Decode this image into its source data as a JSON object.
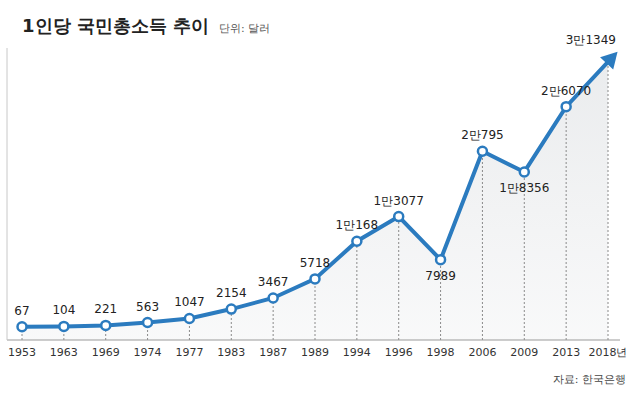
{
  "chart_data": {
    "type": "line",
    "title": "1인당 국민총소득 추이",
    "subtitle": "단위: 달러",
    "annotations": [
      "자료: 한국은행"
    ],
    "categories": [
      "1953",
      "1963",
      "1969",
      "1974",
      "1977",
      "1983",
      "1987",
      "1989",
      "1994",
      "1996",
      "1998",
      "2006",
      "2009",
      "2013",
      "2018년"
    ],
    "values": [
      67,
      104,
      221,
      563,
      1047,
      2154,
      3467,
      5718,
      10168,
      13077,
      7989,
      20795,
      18356,
      26070,
      31349
    ],
    "value_labels": [
      "67",
      "104",
      "221",
      "563",
      "1047",
      "2154",
      "3467",
      "5718",
      "1만168",
      "1만3077",
      "7989",
      "2만795",
      "1만8356",
      "2만6070",
      "3만1349"
    ],
    "color": "#2b7bbf",
    "ylim": [
      -1500,
      33000
    ],
    "tick_labels": "x",
    "data_labels": true,
    "marker": "circle"
  }
}
